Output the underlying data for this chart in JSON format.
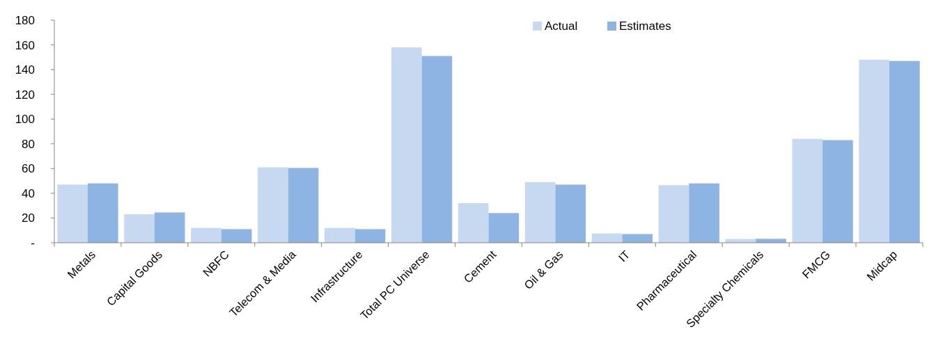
{
  "chart_data": {
    "type": "bar",
    "categories": [
      "Metals",
      "Capital Goods",
      "NBFC",
      "Telecom & Media",
      "Infrastructure",
      "Total PC Universe",
      "Cement",
      "Oil & Gas",
      "IT",
      "Pharmaceutical",
      "Specialty Chemicals",
      "FMCG",
      "Midcap"
    ],
    "series": [
      {
        "name": "Actual",
        "color": "#c6d9f1",
        "values": [
          47,
          23,
          12,
          61,
          12,
          158,
          32,
          49,
          7.5,
          46.5,
          3,
          84,
          148
        ]
      },
      {
        "name": "Estimates",
        "color": "#8eb4e3",
        "values": [
          48,
          24.5,
          11,
          60.5,
          11,
          151,
          24,
          47,
          7,
          48,
          3.2,
          83,
          147
        ]
      }
    ],
    "ylim": [
      0,
      180
    ],
    "yticks": [
      {
        "value": 0,
        "label": "-"
      },
      20,
      40,
      60,
      80,
      100,
      120,
      140,
      160,
      180
    ],
    "grid": false,
    "legend": "top right"
  }
}
